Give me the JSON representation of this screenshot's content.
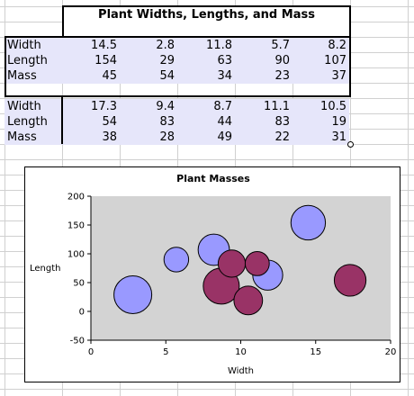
{
  "sheet": {
    "title": "Plant Widths, Lengths, and Mass",
    "block1": [
      {
        "label": "Width",
        "values": [
          "14.5",
          "2.8",
          "11.8",
          "5.7",
          "8.2"
        ]
      },
      {
        "label": "Length",
        "values": [
          "154",
          "29",
          "63",
          "90",
          "107"
        ]
      },
      {
        "label": "Mass",
        "values": [
          "45",
          "54",
          "34",
          "23",
          "37"
        ]
      }
    ],
    "block2": [
      {
        "label": "Width",
        "values": [
          "17.3",
          "9.4",
          "8.7",
          "11.1",
          "10.5"
        ]
      },
      {
        "label": "Length",
        "values": [
          "54",
          "83",
          "44",
          "83",
          "19"
        ]
      },
      {
        "label": "Mass",
        "values": [
          "38",
          "28",
          "49",
          "22",
          "31"
        ]
      }
    ]
  },
  "chart_data": {
    "type": "bubble",
    "title": "Plant Masses",
    "xlabel": "Width",
    "ylabel": "Length",
    "xlim": [
      0,
      20
    ],
    "ylim": [
      -50,
      200
    ],
    "xticks": [
      0,
      5,
      10,
      15,
      20
    ],
    "yticks": [
      -50,
      0,
      50,
      100,
      150,
      200
    ],
    "plot_background": "#d3d3d3",
    "series": [
      {
        "color": "#9999ff",
        "x": [
          14.5,
          2.8,
          11.8,
          5.7,
          8.2
        ],
        "y": [
          154,
          29,
          63,
          90,
          107
        ],
        "size": [
          45,
          54,
          34,
          23,
          37
        ]
      },
      {
        "color": "#993366",
        "x": [
          17.3,
          9.4,
          8.7,
          11.1,
          10.5
        ],
        "y": [
          54,
          83,
          44,
          83,
          19
        ],
        "size": [
          38,
          28,
          49,
          22,
          31
        ]
      }
    ]
  }
}
